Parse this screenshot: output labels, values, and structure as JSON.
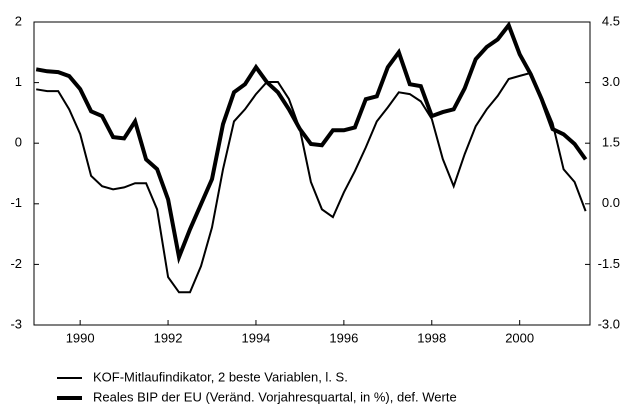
{
  "chart_data": {
    "type": "line",
    "x": [
      1989.0,
      1989.25,
      1989.5,
      1989.75,
      1990.0,
      1990.25,
      1990.5,
      1990.75,
      1991.0,
      1991.25,
      1991.5,
      1991.75,
      1992.0,
      1992.25,
      1992.5,
      1992.75,
      1993.0,
      1993.25,
      1993.5,
      1993.75,
      1994.0,
      1994.25,
      1994.5,
      1994.75,
      1995.0,
      1995.25,
      1995.5,
      1995.75,
      1996.0,
      1996.25,
      1996.5,
      1996.75,
      1997.0,
      1997.25,
      1997.5,
      1997.75,
      1998.0,
      1998.25,
      1998.5,
      1998.75,
      1999.0,
      1999.25,
      1999.5,
      1999.75,
      2000.0,
      2000.25,
      2000.5,
      2000.75,
      2001.0,
      2001.25,
      2001.5
    ],
    "series": [
      {
        "name": "KOF-Mitlaufindikator, 2 beste Variablen, l. S.",
        "color": "#000000",
        "width": 2,
        "axis": "y",
        "values": [
          0.89,
          0.86,
          0.86,
          0.56,
          0.15,
          -0.54,
          -0.71,
          -0.76,
          -0.73,
          -0.66,
          -0.66,
          -1.09,
          -2.21,
          -2.46,
          -2.46,
          -2.03,
          -1.39,
          -0.43,
          0.36,
          0.56,
          0.81,
          1.01,
          1.01,
          0.73,
          0.23,
          -0.64,
          -1.09,
          -1.22,
          -0.81,
          -0.46,
          -0.07,
          0.36,
          0.59,
          0.84,
          0.81,
          0.69,
          0.4,
          -0.26,
          -0.71,
          -0.18,
          0.28,
          0.56,
          0.78,
          1.06,
          1.11,
          1.16,
          0.76,
          0.33,
          -0.43,
          -0.64,
          -1.12
        ]
      },
      {
        "name": "Reales BIP der EU (Veränd. Vorjahresquartal, in %), def. Werte",
        "color": "#000000",
        "width": 4,
        "axis": "y2",
        "values": [
          3.33,
          3.28,
          3.26,
          3.16,
          2.84,
          2.29,
          2.17,
          1.65,
          1.62,
          2.04,
          1.1,
          0.86,
          0.11,
          -1.32,
          -0.63,
          -0.01,
          0.61,
          1.97,
          2.76,
          2.96,
          3.38,
          3.01,
          2.76,
          2.34,
          1.85,
          1.48,
          1.45,
          1.82,
          1.82,
          1.89,
          2.59,
          2.66,
          3.38,
          3.75,
          2.96,
          2.91,
          2.17,
          2.27,
          2.34,
          2.86,
          3.58,
          3.88,
          4.07,
          4.42,
          3.7,
          3.21,
          2.59,
          1.85,
          1.72,
          1.48,
          1.1
        ]
      }
    ],
    "xlim": [
      1988.95,
      2001.6
    ],
    "xticks": [
      1990,
      1992,
      1994,
      1996,
      1998,
      2000
    ],
    "ylim": [
      -3,
      2
    ],
    "yticks": [
      -3,
      -2,
      -1,
      0,
      1,
      2
    ],
    "y2lim": [
      -3,
      4.5
    ],
    "y2ticks": [
      {
        "value": -3,
        "label": "-3.0"
      },
      -1.5,
      {
        "value": 0,
        "label": "0.0"
      },
      1.5,
      {
        "value": 3,
        "label": "3.0"
      },
      4.5
    ],
    "grid": false,
    "legend": "bottom"
  }
}
